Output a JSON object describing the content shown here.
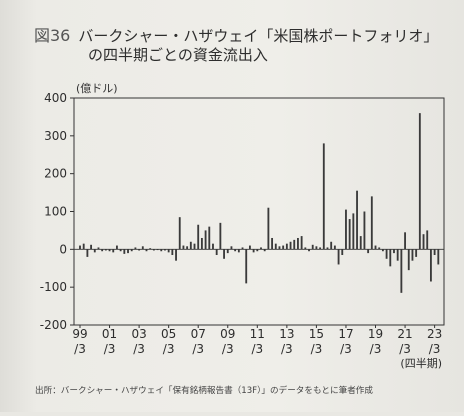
{
  "figure": {
    "number": "図36",
    "title_line1": "バークシャー・ハザウェイ「米国株ポートフォリオ」",
    "title_line2": "の四半期ごとの資金流出入",
    "unit": "(億ドル)",
    "source": "出所：バークシャー・ハザウェイ「保有銘柄報告書（13F）」のデータをもとに筆者作成"
  },
  "colors": {
    "bar": "#3a3a3a",
    "axis": "#333333",
    "grid": "#cfcfcf",
    "text": "#2d2d2d"
  },
  "chart_data": {
    "type": "bar",
    "title": "バークシャー・ハザウェイ「米国株ポートフォリオ」の四半期ごとの資金流出入",
    "ylabel": "(億ドル)",
    "xlabel": "(四半期)",
    "ylim": [
      -200,
      400
    ],
    "yticks": [
      400,
      300,
      200,
      100,
      0,
      -100,
      -200
    ],
    "grid": false,
    "x_start_year": 1999,
    "x_start_quarter": 3,
    "xticks": [
      {
        "top": "99",
        "bottom": "/3",
        "index": 0
      },
      {
        "top": "01",
        "bottom": "/3",
        "index": 8
      },
      {
        "top": "03",
        "bottom": "/3",
        "index": 16
      },
      {
        "top": "05",
        "bottom": "/3",
        "index": 24
      },
      {
        "top": "07",
        "bottom": "/3",
        "index": 32
      },
      {
        "top": "09",
        "bottom": "/3",
        "index": 40
      },
      {
        "top": "11",
        "bottom": "/3",
        "index": 48
      },
      {
        "top": "13",
        "bottom": "/3",
        "index": 56
      },
      {
        "top": "15",
        "bottom": "/3",
        "index": 64
      },
      {
        "top": "17",
        "bottom": "/3",
        "index": 72
      },
      {
        "top": "19",
        "bottom": "/3",
        "index": 80
      },
      {
        "top": "21",
        "bottom": "/3",
        "index": 88
      },
      {
        "top": "23",
        "bottom": "/3",
        "index": 96
      }
    ],
    "values": [
      10,
      15,
      -20,
      12,
      -8,
      5,
      -5,
      -3,
      -5,
      -8,
      10,
      -5,
      -12,
      -10,
      -5,
      5,
      -3,
      8,
      -5,
      3,
      -3,
      -2,
      -5,
      -3,
      -8,
      -15,
      -30,
      85,
      10,
      8,
      20,
      15,
      65,
      30,
      50,
      60,
      15,
      -15,
      70,
      -25,
      -10,
      8,
      -5,
      -8,
      5,
      -90,
      10,
      -8,
      -5,
      5,
      -5,
      110,
      30,
      15,
      8,
      10,
      15,
      20,
      25,
      30,
      35,
      5,
      -5,
      12,
      8,
      5,
      280,
      5,
      20,
      10,
      -40,
      -15,
      105,
      80,
      95,
      155,
      35,
      100,
      -10,
      140,
      10,
      5,
      -5,
      -25,
      -45,
      -10,
      -30,
      -115,
      45,
      -55,
      -30,
      -20,
      360,
      40,
      50,
      -85,
      -15,
      -40
    ],
    "end_labels": {
      "top": "23",
      "bottom": "/3"
    }
  }
}
